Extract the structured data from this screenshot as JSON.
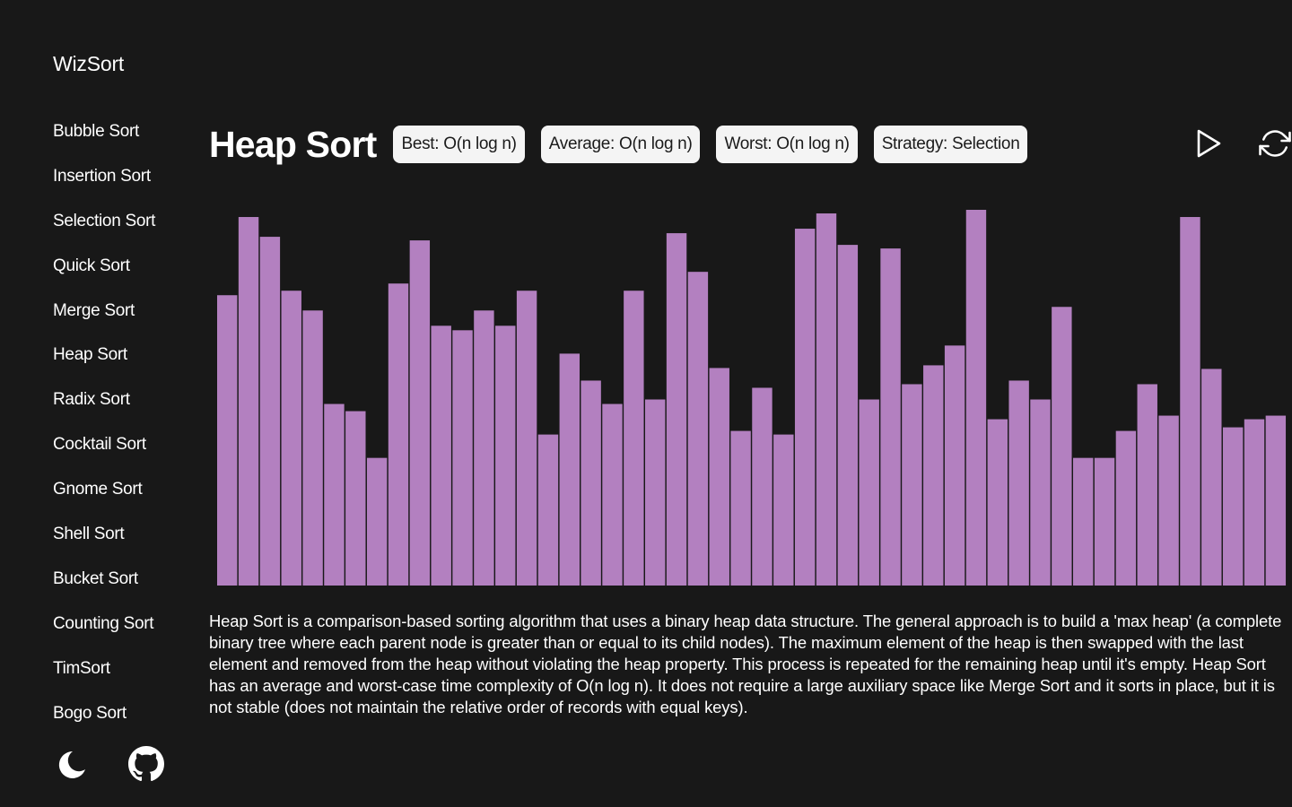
{
  "brand": "WizSort",
  "nav": [
    "Bubble Sort",
    "Insertion Sort",
    "Selection Sort",
    "Quick Sort",
    "Merge Sort",
    "Heap Sort",
    "Radix Sort",
    "Cocktail Sort",
    "Gnome Sort",
    "Shell Sort",
    "Bucket Sort",
    "Counting Sort",
    "TimSort",
    "Bogo Sort"
  ],
  "footer": {
    "theme_icon": "moon-icon",
    "repo_icon": "github-icon"
  },
  "algorithm": {
    "title": "Heap Sort",
    "best": "Best: O(n log n)",
    "average": "Average: O(n log n)",
    "worst": "Worst: O(n log n)",
    "strategy": "Strategy: Selection"
  },
  "controls": {
    "play_icon": "play-icon",
    "reset_icon": "refresh-icon"
  },
  "colors": {
    "bar": "#b380c0",
    "background": "#181818",
    "badge": "#f4f4f4"
  },
  "chart_data": {
    "type": "bar",
    "max": 420,
    "values": [
      323,
      410,
      388,
      328,
      306,
      202,
      194,
      142,
      336,
      384,
      289,
      284,
      306,
      289,
      328,
      168,
      258,
      228,
      202,
      328,
      207,
      392,
      349,
      242,
      172,
      220,
      168,
      397,
      414,
      379,
      207,
      375,
      224,
      245,
      267,
      418,
      185,
      228,
      207,
      310,
      142,
      142,
      172,
      224,
      189,
      410,
      241,
      176,
      185,
      189
    ]
  },
  "description": "Heap Sort is a comparison-based sorting algorithm that uses a binary heap data structure. The general approach is to build a 'max heap' (a complete binary tree where each parent node is greater than or equal to its child nodes). The maximum element of the heap is then swapped with the last element and removed from the heap without violating the heap property. This process is repeated for the remaining heap until it's empty. Heap Sort has an average and worst-case time complexity of O(n log n). It does not require a large auxiliary space like Merge Sort and it sorts in place, but it is not stable (does not maintain the relative order of records with equal keys)."
}
